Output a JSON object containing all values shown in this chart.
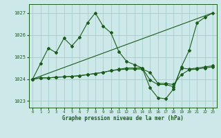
{
  "background_color": "#cce8e8",
  "grid_color": "#aacccc",
  "line_color": "#1a5c1a",
  "title": "Graphe pression niveau de la mer (hPa)",
  "xlim": [
    -0.5,
    23.5
  ],
  "ylim": [
    1022.7,
    1027.4
  ],
  "yticks": [
    1023,
    1024,
    1025,
    1026,
    1027
  ],
  "xticks": [
    0,
    1,
    2,
    3,
    4,
    5,
    6,
    7,
    8,
    9,
    10,
    11,
    12,
    13,
    14,
    15,
    16,
    17,
    18,
    19,
    20,
    21,
    22,
    23
  ],
  "series_straight": {
    "x": [
      0,
      23
    ],
    "y": [
      1024.0,
      1027.0
    ]
  },
  "series_wavy": {
    "x": [
      0,
      1,
      2,
      3,
      4,
      5,
      6,
      7,
      8,
      9,
      10,
      11,
      12,
      13,
      14,
      15,
      16,
      17,
      18,
      19,
      20,
      21,
      22,
      23
    ],
    "y": [
      1024.0,
      1024.7,
      1025.4,
      1025.2,
      1025.85,
      1025.5,
      1025.9,
      1026.55,
      1027.0,
      1026.4,
      1026.1,
      1025.25,
      1024.8,
      1024.65,
      1024.5,
      1023.6,
      1023.15,
      1023.1,
      1023.55,
      1024.55,
      1025.3,
      1026.55,
      1026.8,
      1027.0
    ]
  },
  "series_flat1": {
    "x": [
      0,
      1,
      2,
      3,
      4,
      5,
      6,
      7,
      8,
      9,
      10,
      11,
      12,
      13,
      14,
      15,
      16,
      17,
      18,
      19,
      20,
      21,
      22,
      23
    ],
    "y": [
      1024.0,
      1024.05,
      1024.05,
      1024.08,
      1024.1,
      1024.12,
      1024.15,
      1024.2,
      1024.25,
      1024.3,
      1024.38,
      1024.44,
      1024.5,
      1024.5,
      1024.5,
      1023.95,
      1023.75,
      1023.75,
      1023.65,
      1024.5,
      1024.45,
      1024.5,
      1024.55,
      1024.6
    ]
  },
  "series_flat2": {
    "x": [
      0,
      1,
      2,
      3,
      4,
      5,
      6,
      7,
      8,
      9,
      10,
      11,
      12,
      13,
      14,
      15,
      16,
      17,
      18,
      19,
      20,
      21,
      22,
      23
    ],
    "y": [
      1024.0,
      1024.05,
      1024.05,
      1024.08,
      1024.1,
      1024.12,
      1024.15,
      1024.2,
      1024.25,
      1024.3,
      1024.38,
      1024.42,
      1024.45,
      1024.45,
      1024.45,
      1024.3,
      1023.8,
      1023.8,
      1023.75,
      1024.2,
      1024.42,
      1024.45,
      1024.5,
      1024.55
    ]
  }
}
